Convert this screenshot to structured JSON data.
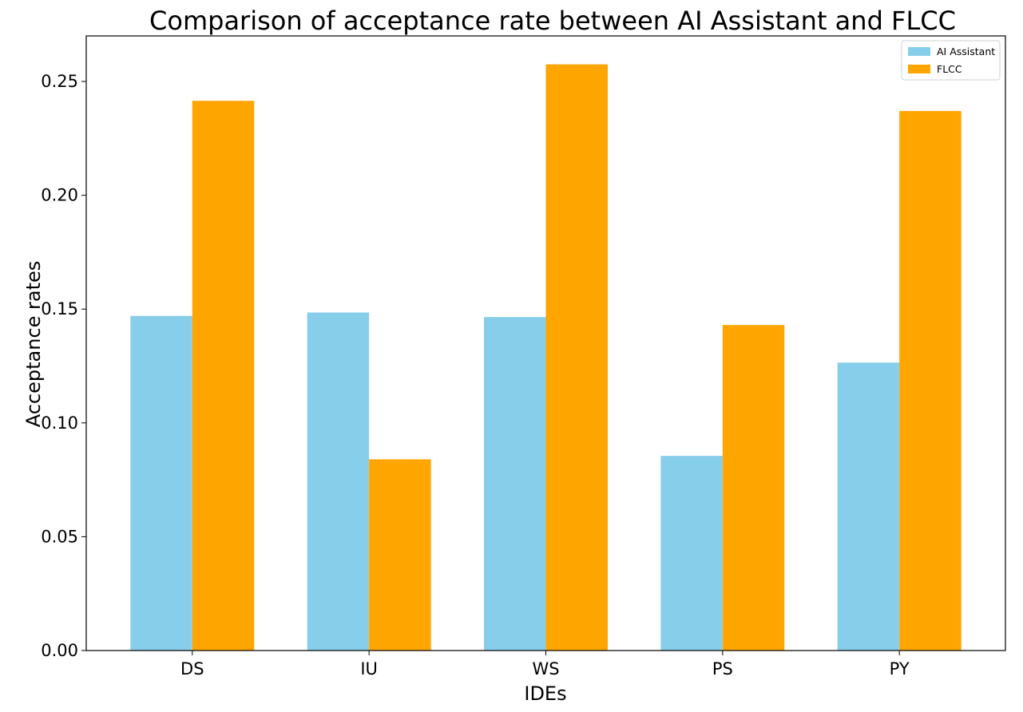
{
  "chart_data": {
    "type": "bar",
    "title": "Comparison of acceptance rate between AI Assistant and FLCC",
    "xlabel": "IDEs",
    "ylabel": "Acceptance rates",
    "categories": [
      "DS",
      "IU",
      "WS",
      "PS",
      "PY"
    ],
    "series": [
      {
        "name": "AI Assistant",
        "color": "#87ceeb",
        "values": [
          0.147,
          0.1485,
          0.1465,
          0.0855,
          0.1265
        ]
      },
      {
        "name": "FLCC",
        "color": "#ffa500",
        "values": [
          0.2415,
          0.084,
          0.2575,
          0.143,
          0.237
        ]
      }
    ],
    "ylim": [
      0,
      0.27
    ],
    "yticks": [
      0.0,
      0.05,
      0.1,
      0.15,
      0.2,
      0.25
    ],
    "ytick_labels": [
      "0.00",
      "0.05",
      "0.10",
      "0.15",
      "0.20",
      "0.25"
    ],
    "grid": false,
    "legend_position": "top-right"
  }
}
